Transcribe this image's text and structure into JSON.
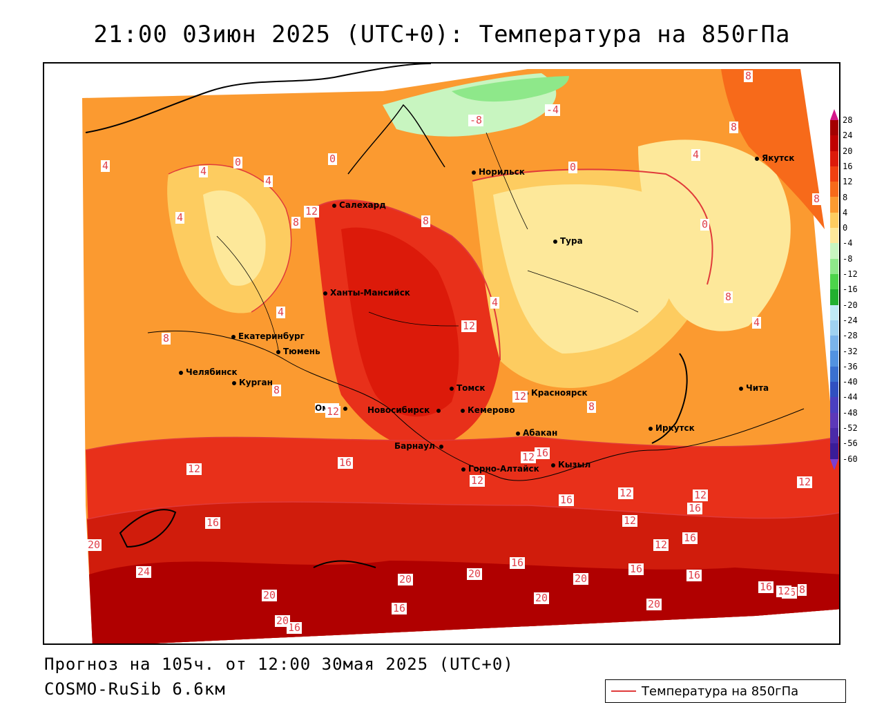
{
  "title": "21:00 03июн 2025 (UTC+0): Температура на 850гПа",
  "footer": {
    "forecast": "Прогноз на 105ч. от 12:00 30мая 2025 (UTC+0)",
    "model": "COSMO-RuSib 6.6км"
  },
  "legend": {
    "label": "Температура на 850гПа",
    "line_color": "#e03a3a"
  },
  "colorbar": {
    "ticks": [
      "28",
      "24",
      "20",
      "16",
      "12",
      "8",
      "4",
      "0",
      "-4",
      "-8",
      "-12",
      "-16",
      "-20",
      "-24",
      "-28",
      "-32",
      "-36",
      "-40",
      "-44",
      "-48",
      "-52",
      "-56",
      "-60"
    ],
    "colors": [
      "#a40000",
      "#c00000",
      "#dc1a0a",
      "#f04010",
      "#f76a1a",
      "#fb9a30",
      "#fdcc60",
      "#fde89a",
      "#c8f5c0",
      "#8ee88a",
      "#4cd44a",
      "#22b030",
      "#c0eaf5",
      "#a0d2f0",
      "#7ab4ea",
      "#5292e0",
      "#3a70d0",
      "#3050c0",
      "#4a3fc0",
      "#5c38b8",
      "#4a2aa8",
      "#3a1c98"
    ]
  },
  "cities": [
    {
      "name": "Норильск"
    },
    {
      "name": "Якутск"
    },
    {
      "name": "Салехард"
    },
    {
      "name": "Тура"
    },
    {
      "name": "Ханты-Мансийск"
    },
    {
      "name": "Екатеринбург"
    },
    {
      "name": "Тюмень"
    },
    {
      "name": "Челябинск"
    },
    {
      "name": "Курган"
    },
    {
      "name": "Томск"
    },
    {
      "name": "Красноярск"
    },
    {
      "name": "Омск"
    },
    {
      "name": "Новосибирск"
    },
    {
      "name": "Кемерово"
    },
    {
      "name": "Абакан"
    },
    {
      "name": "Иркутск"
    },
    {
      "name": "Чита"
    },
    {
      "name": "Барнаул"
    },
    {
      "name": "Горно-Алтайск"
    },
    {
      "name": "Кызыл"
    }
  ],
  "isolines": [
    "8",
    "-8",
    "-4",
    "8",
    "4",
    "0",
    "4",
    "0",
    "0",
    "4",
    "12",
    "8",
    "8",
    "0",
    "4",
    "4",
    "8",
    "4",
    "12",
    "8",
    "12",
    "12",
    "8",
    "4",
    "8",
    "4",
    "8",
    "12",
    "16",
    "12",
    "16",
    "12",
    "16",
    "12",
    "12",
    "12",
    "16",
    "12",
    "16",
    "16",
    "20",
    "24",
    "20",
    "16",
    "20",
    "20",
    "16",
    "20",
    "20",
    "16",
    "16",
    "20",
    "16",
    "16",
    "12",
    "8",
    "12",
    "16",
    "20"
  ]
}
